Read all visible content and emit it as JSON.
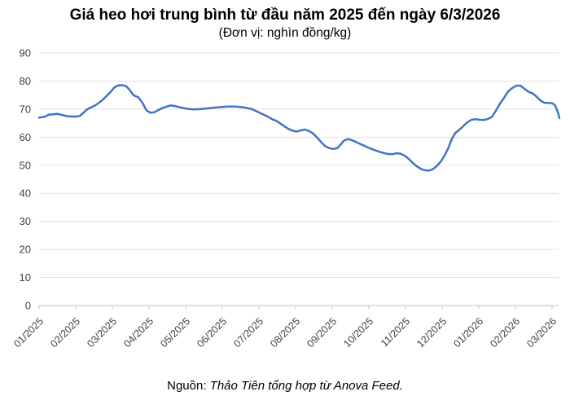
{
  "chart_data": {
    "type": "line",
    "title": "Giá heo hơi trung bình từ đầu năm 2025 đến ngày 6/3/2026",
    "subtitle": "(Đơn vị: nghìn đồng/kg)",
    "source": {
      "label": "Nguồn:",
      "text": "Thảo Tiên tổng hợp từ Anova Feed."
    },
    "ylim": [
      0,
      90
    ],
    "y_ticks": [
      0,
      10,
      20,
      30,
      40,
      50,
      60,
      70,
      80,
      90
    ],
    "x_tick_labels": [
      "01/2025",
      "02/2025",
      "03/2025",
      "04/2025",
      "05/2025",
      "06/2025",
      "07/2025",
      "08/2025",
      "09/2025",
      "10/2025",
      "11/2025",
      "12/2025",
      "01/2026",
      "02/2026",
      "03/2026"
    ],
    "xlim": [
      0,
      14.2
    ],
    "x_unit": "month index, 0 = 01/2025, 1 per month, series ends 6/3/2026",
    "grid": "horizontal",
    "legend": "none",
    "colors": {
      "line": "#4472c4",
      "grid": "#e2e2e2",
      "axis": "#bfbfbf",
      "text": "#404040"
    },
    "series": [
      {
        "name": "Giá heo hơi trung bình (nghìn đồng/kg)",
        "color": "#4472c4",
        "points": [
          [
            0,
            67
          ],
          [
            0.13,
            67.2
          ],
          [
            0.27,
            68
          ],
          [
            0.49,
            68.3
          ],
          [
            0.67,
            67.8
          ],
          [
            0.78,
            67.4
          ],
          [
            1,
            67.3
          ],
          [
            1.11,
            67.6
          ],
          [
            1.22,
            68.8
          ],
          [
            1.31,
            69.9
          ],
          [
            1.42,
            70.6
          ],
          [
            1.53,
            71.3
          ],
          [
            1.64,
            72.3
          ],
          [
            1.75,
            73.5
          ],
          [
            1.86,
            74.9
          ],
          [
            1.97,
            76.4
          ],
          [
            2.04,
            77.5
          ],
          [
            2.11,
            78.2
          ],
          [
            2.2,
            78.5
          ],
          [
            2.26,
            78.5
          ],
          [
            2.37,
            78.2
          ],
          [
            2.44,
            77.3
          ],
          [
            2.49,
            76.5
          ],
          [
            2.55,
            75.3
          ],
          [
            2.6,
            74.8
          ],
          [
            2.71,
            74.2
          ],
          [
            2.82,
            72.3
          ],
          [
            2.93,
            69.6
          ],
          [
            3.04,
            68.7
          ],
          [
            3.15,
            68.9
          ],
          [
            3.26,
            69.7
          ],
          [
            3.37,
            70.4
          ],
          [
            3.48,
            70.9
          ],
          [
            3.59,
            71.3
          ],
          [
            3.7,
            71.1
          ],
          [
            3.82,
            70.7
          ],
          [
            3.93,
            70.4
          ],
          [
            4.04,
            70.1
          ],
          [
            4.22,
            69.9
          ],
          [
            4.37,
            70
          ],
          [
            4.48,
            70.1
          ],
          [
            4.7,
            70.4
          ],
          [
            4.92,
            70.7
          ],
          [
            5.15,
            70.9
          ],
          [
            5.37,
            70.9
          ],
          [
            5.59,
            70.6
          ],
          [
            5.81,
            70
          ],
          [
            5.99,
            68.9
          ],
          [
            6.1,
            68.2
          ],
          [
            6.26,
            67.2
          ],
          [
            6.37,
            66.3
          ],
          [
            6.48,
            65.8
          ],
          [
            6.59,
            64.8
          ],
          [
            6.7,
            63.8
          ],
          [
            6.81,
            62.9
          ],
          [
            6.92,
            62.3
          ],
          [
            7.03,
            62
          ],
          [
            7.14,
            62.4
          ],
          [
            7.25,
            62.7
          ],
          [
            7.37,
            62.2
          ],
          [
            7.48,
            61.3
          ],
          [
            7.59,
            59.8
          ],
          [
            7.7,
            58.2
          ],
          [
            7.81,
            56.8
          ],
          [
            7.92,
            56.1
          ],
          [
            8.03,
            55.8
          ],
          [
            8.14,
            56.1
          ],
          [
            8.23,
            57.4
          ],
          [
            8.32,
            58.8
          ],
          [
            8.43,
            59.3
          ],
          [
            8.54,
            58.9
          ],
          [
            8.65,
            58.3
          ],
          [
            8.76,
            57.6
          ],
          [
            8.87,
            57
          ],
          [
            8.98,
            56.3
          ],
          [
            9.09,
            55.7
          ],
          [
            9.2,
            55.2
          ],
          [
            9.31,
            54.7
          ],
          [
            9.42,
            54.3
          ],
          [
            9.53,
            54
          ],
          [
            9.64,
            53.9
          ],
          [
            9.76,
            54.3
          ],
          [
            9.87,
            54.1
          ],
          [
            9.98,
            53.4
          ],
          [
            10.09,
            52.2
          ],
          [
            10.2,
            50.8
          ],
          [
            10.31,
            49.6
          ],
          [
            10.42,
            48.7
          ],
          [
            10.53,
            48.2
          ],
          [
            10.64,
            48.1
          ],
          [
            10.75,
            48.6
          ],
          [
            10.86,
            49.8
          ],
          [
            10.98,
            51.6
          ],
          [
            11.09,
            54
          ],
          [
            11.18,
            56.5
          ],
          [
            11.27,
            59.5
          ],
          [
            11.36,
            61.5
          ],
          [
            11.47,
            62.6
          ],
          [
            11.58,
            64
          ],
          [
            11.69,
            65.3
          ],
          [
            11.8,
            66.2
          ],
          [
            11.91,
            66.4
          ],
          [
            12.02,
            66.2
          ],
          [
            12.13,
            66.1
          ],
          [
            12.25,
            66.5
          ],
          [
            12.36,
            67.2
          ],
          [
            12.47,
            69.5
          ],
          [
            12.58,
            72
          ],
          [
            12.69,
            74
          ],
          [
            12.8,
            76.3
          ],
          [
            12.91,
            77.5
          ],
          [
            13.02,
            78.3
          ],
          [
            13.13,
            78.4
          ],
          [
            13.24,
            77.3
          ],
          [
            13.35,
            76.2
          ],
          [
            13.47,
            75.6
          ],
          [
            13.58,
            74.4
          ],
          [
            13.69,
            73
          ],
          [
            13.8,
            72.2
          ],
          [
            13.91,
            72.2
          ],
          [
            14.02,
            72
          ],
          [
            14.09,
            71.2
          ],
          [
            14.16,
            68.8
          ],
          [
            14.2,
            66.8
          ]
        ]
      }
    ]
  }
}
